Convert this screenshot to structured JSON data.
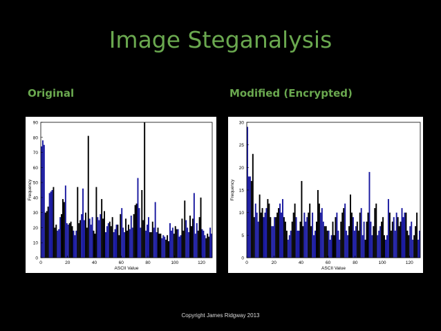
{
  "slide": {
    "title": "Image Steganalysis",
    "left_heading": "Original",
    "right_heading": "Modified (Encrypted)",
    "copyright": "Copyright James Ridgway 2013"
  },
  "colors": {
    "title": "#6aa84f",
    "bar_blue": "#1a1aa0",
    "bar_black": "#000000",
    "background": "#000000"
  },
  "chart_data": [
    {
      "type": "bar",
      "title": "",
      "xlabel": "ASCII Value",
      "ylabel": "Frequency",
      "xlim": [
        0,
        128
      ],
      "ylim": [
        0,
        90
      ],
      "xticks": [
        0,
        20,
        40,
        60,
        80,
        100,
        120
      ],
      "yticks": [
        0,
        10,
        20,
        30,
        40,
        50,
        60,
        70,
        80,
        90
      ],
      "series": [
        {
          "values": [
            74,
            78,
            75,
            30,
            31,
            34,
            43,
            44,
            45,
            47,
            20,
            22,
            18,
            19,
            27,
            29,
            39,
            37,
            48,
            23,
            22,
            23,
            24,
            21,
            18,
            15,
            18,
            47,
            23,
            25,
            29,
            46,
            25,
            30,
            20,
            81,
            26,
            22,
            27,
            18,
            16,
            47,
            27,
            25,
            29,
            39,
            26,
            31,
            17,
            21,
            23,
            24,
            21,
            27,
            17,
            19,
            22,
            22,
            15,
            29,
            33,
            20,
            17,
            26,
            18,
            22,
            19,
            28,
            20,
            29,
            35,
            36,
            53,
            33,
            20,
            45,
            25,
            90,
            18,
            22,
            27,
            17,
            17,
            24,
            20,
            37,
            17,
            20,
            16,
            16,
            13,
            15,
            14,
            12,
            15,
            11,
            23,
            18,
            20,
            16,
            21,
            19,
            19,
            14,
            15,
            26,
            18,
            38,
            25,
            20,
            17,
            28,
            21,
            26,
            43,
            16,
            23,
            18,
            27,
            40,
            19,
            18,
            15,
            13,
            16,
            14,
            20,
            16
          ]
        }
      ]
    },
    {
      "type": "bar",
      "title": "",
      "xlabel": "ASCII Value",
      "ylabel": "Frequency",
      "xlim": [
        0,
        128
      ],
      "ylim": [
        0,
        30
      ],
      "xticks": [
        0,
        20,
        40,
        60,
        80,
        100,
        120
      ],
      "yticks": [
        0,
        5,
        10,
        15,
        20,
        25,
        30
      ],
      "series": [
        {
          "values": [
            29,
            18,
            18,
            17,
            23,
            9,
            12,
            10,
            8,
            14,
            10,
            11,
            9,
            10,
            11,
            13,
            12,
            9,
            7,
            7,
            9,
            9,
            10,
            11,
            12,
            10,
            13,
            9,
            8,
            6,
            4,
            5,
            6,
            8,
            10,
            12,
            9,
            6,
            6,
            8,
            17,
            7,
            10,
            8,
            9,
            10,
            12,
            7,
            10,
            5,
            6,
            8,
            15,
            12,
            10,
            11,
            8,
            7,
            7,
            6,
            6,
            4,
            5,
            8,
            5,
            9,
            10,
            6,
            4,
            8,
            10,
            11,
            12,
            6,
            5,
            7,
            14,
            10,
            9,
            6,
            7,
            8,
            6,
            10,
            11,
            5,
            8,
            4,
            8,
            10,
            19,
            8,
            5,
            7,
            11,
            12,
            5,
            6,
            7,
            8,
            9,
            5,
            4,
            5,
            13,
            10,
            6,
            8,
            9,
            6,
            10,
            9,
            7,
            8,
            11,
            9,
            10,
            10,
            6,
            5,
            7,
            8,
            4,
            5,
            7,
            10,
            4,
            6
          ]
        }
      ]
    }
  ]
}
